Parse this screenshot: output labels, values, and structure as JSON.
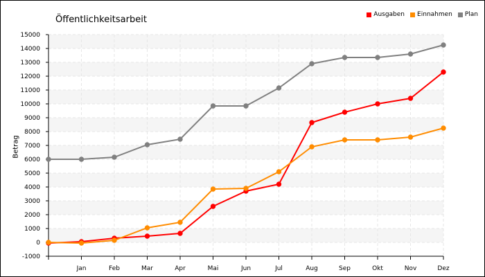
{
  "chart_data": {
    "type": "line",
    "title": "Öffentlichkeitsarbeit",
    "xlabel": "",
    "ylabel": "Betrag",
    "ylim": [
      -1000,
      15000
    ],
    "yticks": [
      -1000,
      0,
      1000,
      2000,
      3000,
      4000,
      5000,
      6000,
      7000,
      8000,
      9000,
      10000,
      11000,
      12000,
      13000,
      14000,
      15000
    ],
    "categories": [
      "",
      "Jan",
      "Feb",
      "Mar",
      "Apr",
      "Mai",
      "Jun",
      "Jul",
      "Aug",
      "Sep",
      "Okt",
      "Nov",
      "Dez"
    ],
    "grid": true,
    "legend_position": "top-right",
    "series": [
      {
        "name": "Ausgaben",
        "color": "#ff0000",
        "values": [
          -50,
          50,
          300,
          450,
          650,
          2600,
          3700,
          4200,
          8650,
          9400,
          10000,
          10400,
          12300
        ]
      },
      {
        "name": "Einnahmen",
        "color": "#ff8c00",
        "values": [
          0,
          -50,
          150,
          1050,
          1450,
          3850,
          3900,
          5100,
          6900,
          7400,
          7400,
          7600,
          8250
        ]
      },
      {
        "name": "Plan",
        "color": "#808080",
        "values": [
          6000,
          6000,
          6150,
          7050,
          7450,
          9850,
          9850,
          11150,
          12900,
          13350,
          13350,
          13600,
          14250
        ]
      }
    ]
  }
}
